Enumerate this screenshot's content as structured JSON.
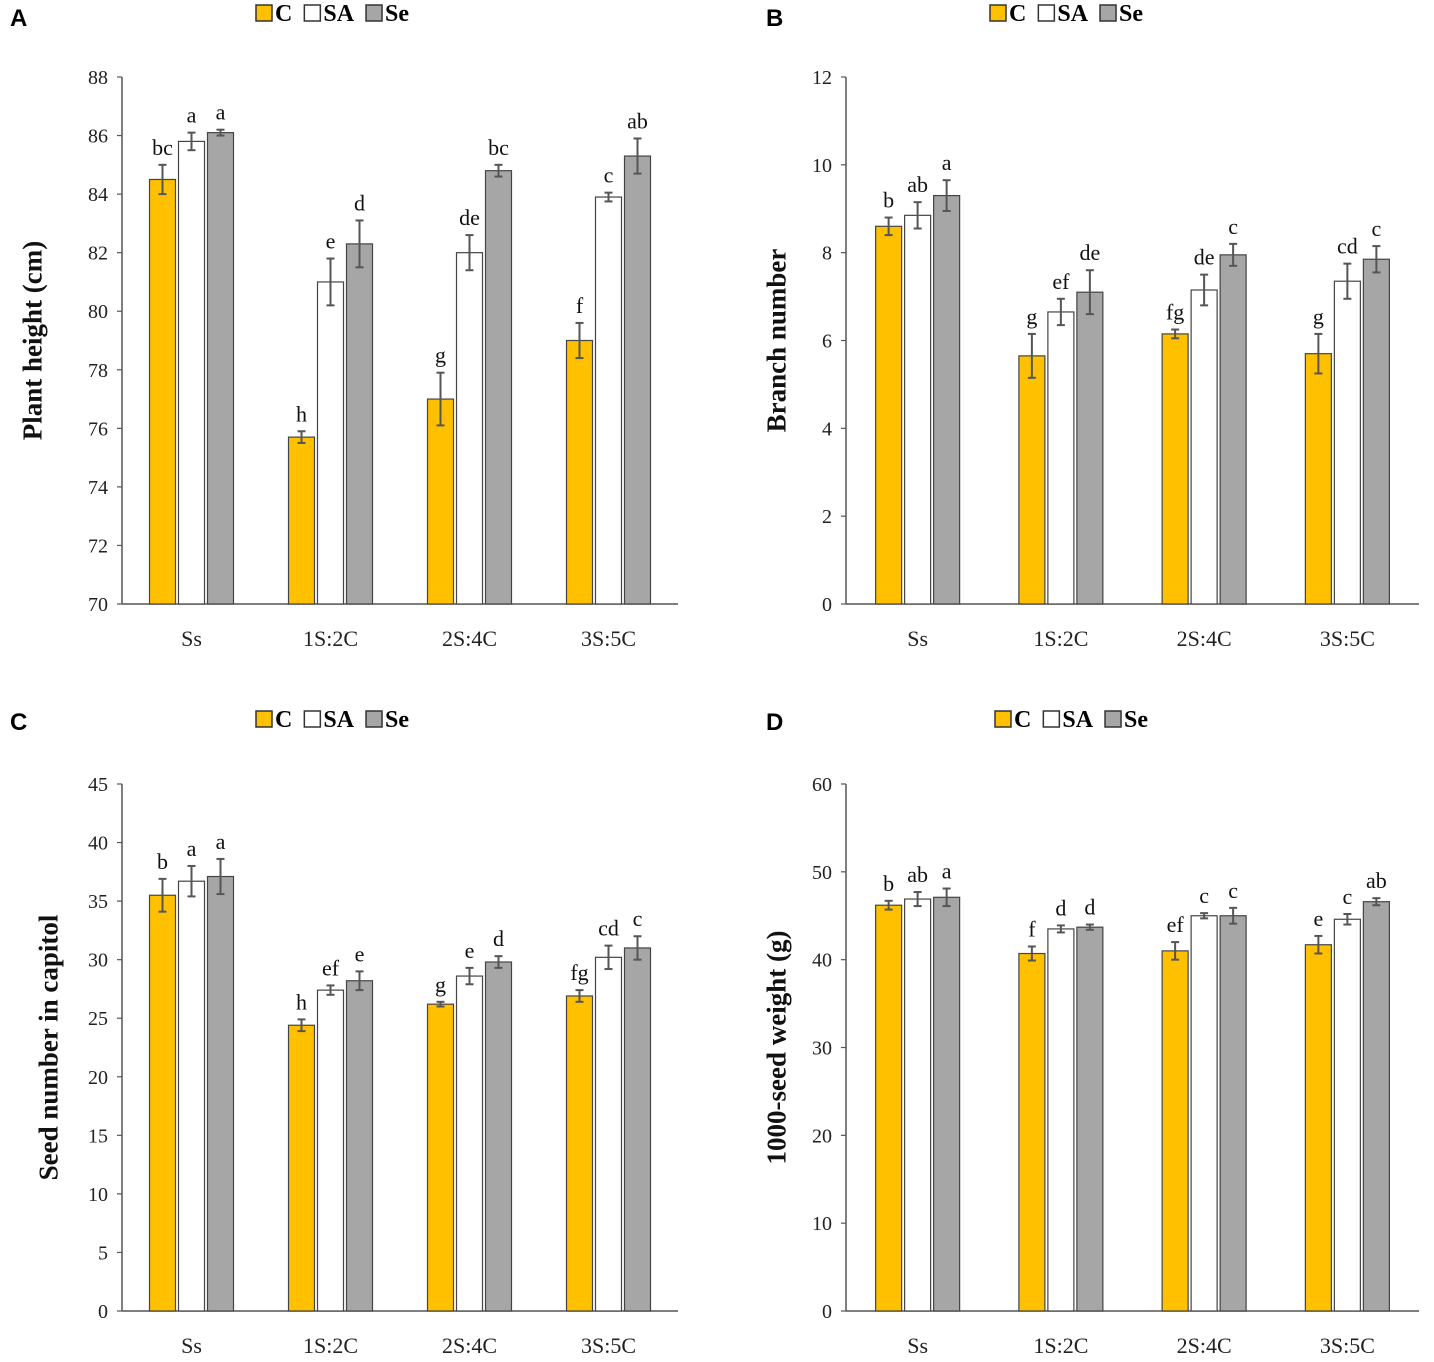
{
  "chart_data": [
    {
      "panel": "A",
      "type": "bar",
      "title": "",
      "xlabel": "",
      "ylabel": "Plant height (cm)",
      "ylim": [
        70,
        88
      ],
      "yticks": [
        70,
        72,
        74,
        76,
        78,
        80,
        82,
        84,
        86,
        88
      ],
      "categories": [
        "Ss",
        "1S:2C",
        "2S:4C",
        "3S:5C"
      ],
      "legend_position": "top-center",
      "grid": false,
      "series": [
        {
          "name": "C",
          "color": "#FFC000",
          "values": [
            84.5,
            75.7,
            77.0,
            79.0
          ],
          "errors": [
            0.5,
            0.2,
            0.9,
            0.6
          ],
          "letters": [
            "bc",
            "h",
            "g",
            "f"
          ]
        },
        {
          "name": "SA",
          "color": "#FFFFFF",
          "values": [
            85.8,
            81.0,
            82.0,
            83.9
          ],
          "errors": [
            0.3,
            0.8,
            0.6,
            0.15
          ],
          "letters": [
            "a",
            "e",
            "de",
            "c"
          ]
        },
        {
          "name": "Se",
          "color": "#A6A6A6",
          "values": [
            86.1,
            82.3,
            84.8,
            85.3
          ],
          "errors": [
            0.1,
            0.8,
            0.2,
            0.6
          ],
          "letters": [
            "a",
            "d",
            "bc",
            "ab"
          ]
        }
      ]
    },
    {
      "panel": "B",
      "type": "bar",
      "title": "",
      "xlabel": "",
      "ylabel": "Branch number",
      "ylim": [
        0,
        12
      ],
      "yticks": [
        0,
        2,
        4,
        6,
        8,
        10,
        12
      ],
      "categories": [
        "Ss",
        "1S:2C",
        "2S:4C",
        "3S:5C"
      ],
      "legend_position": "top-center",
      "grid": false,
      "series": [
        {
          "name": "C",
          "color": "#FFC000",
          "values": [
            8.6,
            5.65,
            6.15,
            5.7
          ],
          "errors": [
            0.2,
            0.5,
            0.1,
            0.45
          ],
          "letters": [
            "b",
            "g",
            "fg",
            "g"
          ]
        },
        {
          "name": "SA",
          "color": "#FFFFFF",
          "values": [
            8.85,
            6.65,
            7.15,
            7.35
          ],
          "errors": [
            0.3,
            0.3,
            0.35,
            0.4
          ],
          "letters": [
            "ab",
            "ef",
            "de",
            "cd"
          ]
        },
        {
          "name": "Se",
          "color": "#A6A6A6",
          "values": [
            9.3,
            7.1,
            7.95,
            7.85
          ],
          "errors": [
            0.35,
            0.5,
            0.25,
            0.3
          ],
          "letters": [
            "a",
            "de",
            "c",
            "c"
          ]
        }
      ]
    },
    {
      "panel": "C",
      "type": "bar",
      "title": "",
      "xlabel": "",
      "ylabel": "Seed number in capitol",
      "ylim": [
        0,
        45
      ],
      "yticks": [
        0,
        5,
        10,
        15,
        20,
        25,
        30,
        35,
        40,
        45
      ],
      "categories": [
        "Ss",
        "1S:2C",
        "2S:4C",
        "3S:5C"
      ],
      "legend_position": "top-center",
      "grid": false,
      "series": [
        {
          "name": "C",
          "color": "#FFC000",
          "values": [
            35.5,
            24.4,
            26.2,
            26.9
          ],
          "errors": [
            1.4,
            0.5,
            0.2,
            0.5
          ],
          "letters": [
            "b",
            "h",
            "g",
            "fg"
          ]
        },
        {
          "name": "SA",
          "color": "#FFFFFF",
          "values": [
            36.7,
            27.4,
            28.6,
            30.2
          ],
          "errors": [
            1.3,
            0.4,
            0.7,
            1.0
          ],
          "letters": [
            "a",
            "ef",
            "e",
            "cd"
          ]
        },
        {
          "name": "Se",
          "color": "#A6A6A6",
          "values": [
            37.1,
            28.2,
            29.8,
            31.0
          ],
          "errors": [
            1.5,
            0.8,
            0.5,
            1.0
          ],
          "letters": [
            "a",
            "e",
            "d",
            "c"
          ]
        }
      ]
    },
    {
      "panel": "D",
      "type": "bar",
      "title": "",
      "xlabel": "",
      "ylabel": "1000-seed weight (g)",
      "ylim": [
        0,
        60
      ],
      "yticks": [
        0,
        10,
        20,
        30,
        40,
        50,
        60
      ],
      "categories": [
        "Ss",
        "1S:2C",
        "2S:4C",
        "3S:5C"
      ],
      "legend_position": "top-center",
      "grid": false,
      "series": [
        {
          "name": "C",
          "color": "#FFC000",
          "values": [
            46.2,
            40.7,
            41.0,
            41.7
          ],
          "errors": [
            0.5,
            0.8,
            1.0,
            1.0
          ],
          "letters": [
            "b",
            "f",
            "ef",
            "e"
          ]
        },
        {
          "name": "SA",
          "color": "#FFFFFF",
          "values": [
            46.9,
            43.5,
            45.0,
            44.6
          ],
          "errors": [
            0.8,
            0.4,
            0.3,
            0.6
          ],
          "letters": [
            "ab",
            "d",
            "c",
            "c"
          ]
        },
        {
          "name": "Se",
          "color": "#A6A6A6",
          "values": [
            47.1,
            43.7,
            45.0,
            46.6
          ],
          "errors": [
            1.0,
            0.3,
            0.9,
            0.4
          ],
          "letters": [
            "a",
            "d",
            "c",
            "ab"
          ]
        }
      ]
    }
  ]
}
